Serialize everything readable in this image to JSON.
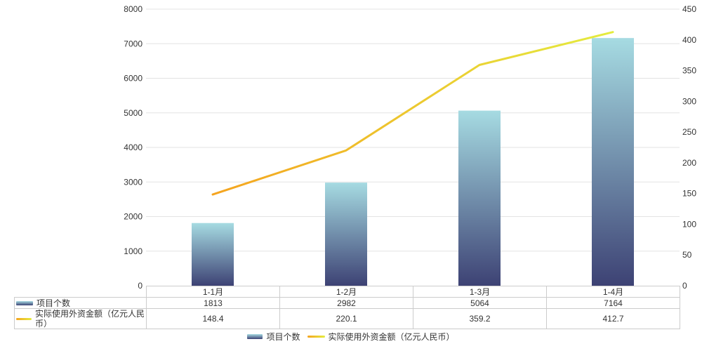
{
  "colors": {
    "bar_top": "#a6dbe2",
    "bar_bottom": "#3d4274",
    "line_start": "#f5a41f",
    "line_end": "#e4ec3f",
    "grid": "#e3e3e3",
    "border": "#cccccc",
    "text": "#333333"
  },
  "chart_data": {
    "type": "combo",
    "title": "",
    "categories": [
      "1-1月",
      "1-2月",
      "1-3月",
      "1-4月"
    ],
    "series": [
      {
        "name": "项目个数",
        "type": "bar",
        "axis": "left",
        "values": [
          1813,
          2982,
          5064,
          7164
        ]
      },
      {
        "name": "实际使用外资金额（亿元人民币）",
        "type": "line",
        "axis": "right",
        "values": [
          148.4,
          220.1,
          359.2,
          412.7
        ]
      }
    ],
    "left_axis": {
      "min": 0,
      "max": 8000,
      "step": 1000,
      "tick_labels": [
        "0",
        "1000",
        "2000",
        "3000",
        "4000",
        "5000",
        "6000",
        "7000",
        "8000"
      ]
    },
    "right_axis": {
      "min": 0,
      "max": 450,
      "step": 50,
      "tick_labels": [
        "0",
        "50",
        "100",
        "150",
        "200",
        "250",
        "300",
        "350",
        "400",
        "450"
      ]
    },
    "grid": "horizontal-only",
    "legend_position": "bottom"
  },
  "table": {
    "header": [
      "1-1月",
      "1-2月",
      "1-3月",
      "1-4月"
    ],
    "rows": [
      {
        "label": "项目个数",
        "swatch": "bar",
        "values": [
          "1813",
          "2982",
          "5064",
          "7164"
        ]
      },
      {
        "label": "实际使用外资金额（亿元人民币）",
        "swatch": "line",
        "values": [
          "148.4",
          "220.1",
          "359.2",
          "412.7"
        ]
      }
    ]
  },
  "legend": {
    "items": [
      {
        "label": "项目个数",
        "swatch": "bar"
      },
      {
        "label": "实际使用外资金额（亿元人民币）",
        "swatch": "line"
      }
    ]
  }
}
